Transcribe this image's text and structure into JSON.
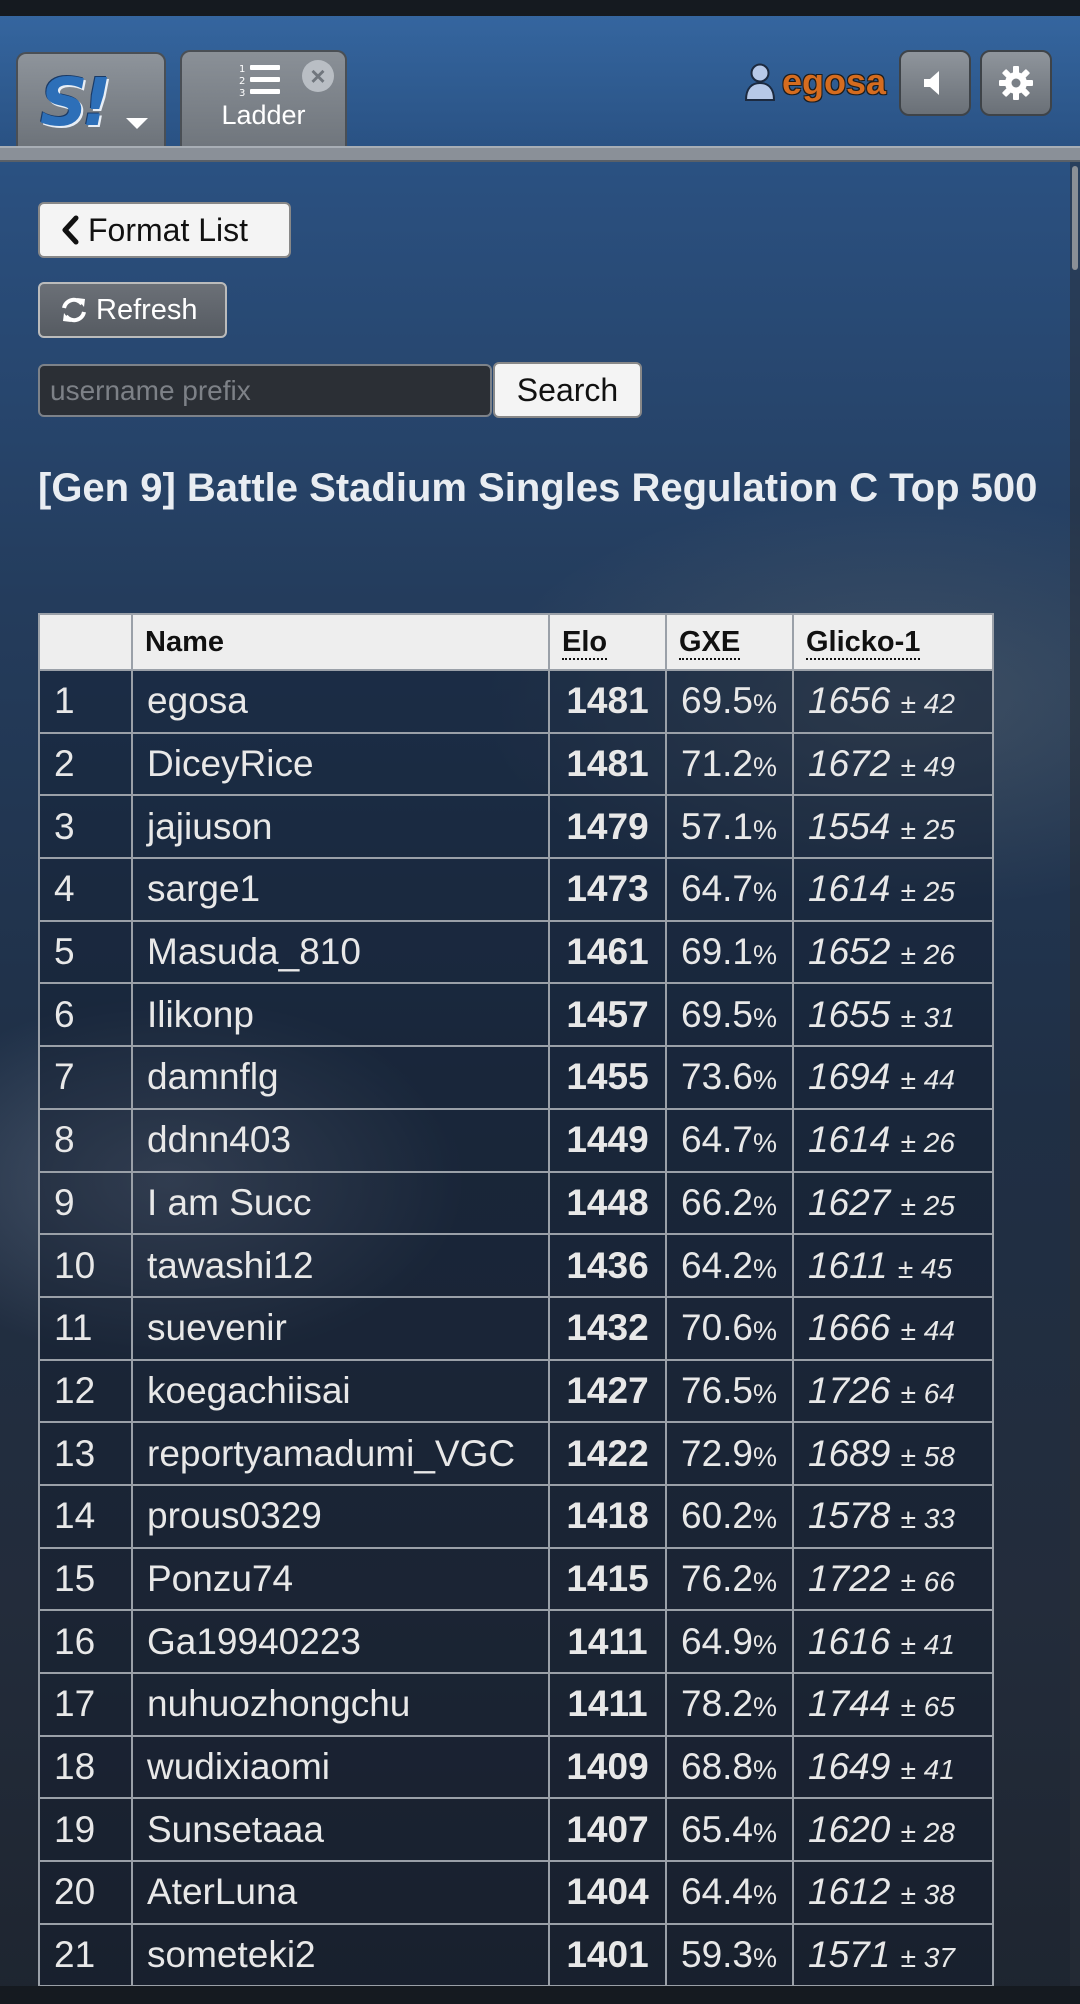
{
  "header": {
    "tab_label": "Ladder",
    "username": "egosa",
    "icons": {
      "logo": "showdown-logo",
      "menu": "chevron-down-icon",
      "ladder": "ordered-list-icon",
      "close": "close-icon",
      "user": "user-icon",
      "sound": "speaker-icon",
      "settings": "gear-icon"
    }
  },
  "controls": {
    "format_list_label": "Format List",
    "refresh_label": "Refresh",
    "search_placeholder": "username prefix",
    "search_label": "Search"
  },
  "ladder": {
    "title": "[Gen 9] Battle Stadium Singles Regulation C Top 500",
    "columns": [
      "",
      "Name",
      "Elo",
      "GXE",
      "Glicko-1"
    ],
    "rows": [
      {
        "rank": "1",
        "name": "egosa",
        "elo": "1481",
        "gxe": "69.5",
        "glicko": "1656",
        "dev": "± 42"
      },
      {
        "rank": "2",
        "name": "DiceyRice",
        "elo": "1481",
        "gxe": "71.2",
        "glicko": "1672",
        "dev": "± 49"
      },
      {
        "rank": "3",
        "name": "jajiuson",
        "elo": "1479",
        "gxe": "57.1",
        "glicko": "1554",
        "dev": "± 25"
      },
      {
        "rank": "4",
        "name": "sarge1",
        "elo": "1473",
        "gxe": "64.7",
        "glicko": "1614",
        "dev": "± 25"
      },
      {
        "rank": "5",
        "name": "Masuda_810",
        "elo": "1461",
        "gxe": "69.1",
        "glicko": "1652",
        "dev": "± 26"
      },
      {
        "rank": "6",
        "name": "Ilikonp",
        "elo": "1457",
        "gxe": "69.5",
        "glicko": "1655",
        "dev": "± 31"
      },
      {
        "rank": "7",
        "name": "damnflg",
        "elo": "1455",
        "gxe": "73.6",
        "glicko": "1694",
        "dev": "± 44"
      },
      {
        "rank": "8",
        "name": "ddnn403",
        "elo": "1449",
        "gxe": "64.7",
        "glicko": "1614",
        "dev": "± 26"
      },
      {
        "rank": "9",
        "name": "I am Succ",
        "elo": "1448",
        "gxe": "66.2",
        "glicko": "1627",
        "dev": "± 25"
      },
      {
        "rank": "10",
        "name": "tawashi12",
        "elo": "1436",
        "gxe": "64.2",
        "glicko": "1611",
        "dev": "± 45"
      },
      {
        "rank": "11",
        "name": "suevenir",
        "elo": "1432",
        "gxe": "70.6",
        "glicko": "1666",
        "dev": "± 44"
      },
      {
        "rank": "12",
        "name": "koegachiisai",
        "elo": "1427",
        "gxe": "76.5",
        "glicko": "1726",
        "dev": "± 64"
      },
      {
        "rank": "13",
        "name": "reportyamadumi_VGC",
        "elo": "1422",
        "gxe": "72.9",
        "glicko": "1689",
        "dev": "± 58"
      },
      {
        "rank": "14",
        "name": "prous0329",
        "elo": "1418",
        "gxe": "60.2",
        "glicko": "1578",
        "dev": "± 33"
      },
      {
        "rank": "15",
        "name": "Ponzu74",
        "elo": "1415",
        "gxe": "76.2",
        "glicko": "1722",
        "dev": "± 66"
      },
      {
        "rank": "16",
        "name": "Ga19940223",
        "elo": "1411",
        "gxe": "64.9",
        "glicko": "1616",
        "dev": "± 41"
      },
      {
        "rank": "17",
        "name": "nuhuozhongchu",
        "elo": "1411",
        "gxe": "78.2",
        "glicko": "1744",
        "dev": "± 65"
      },
      {
        "rank": "18",
        "name": "wudixiaomi",
        "elo": "1409",
        "gxe": "68.8",
        "glicko": "1649",
        "dev": "± 41"
      },
      {
        "rank": "19",
        "name": "Sunsetaaa",
        "elo": "1407",
        "gxe": "65.4",
        "glicko": "1620",
        "dev": "± 28"
      },
      {
        "rank": "20",
        "name": "AterLuna",
        "elo": "1404",
        "gxe": "64.4",
        "glicko": "1612",
        "dev": "± 38"
      },
      {
        "rank": "21",
        "name": "someteki2",
        "elo": "1401",
        "gxe": "59.3",
        "glicko": "1571",
        "dev": "± 37"
      }
    ]
  }
}
